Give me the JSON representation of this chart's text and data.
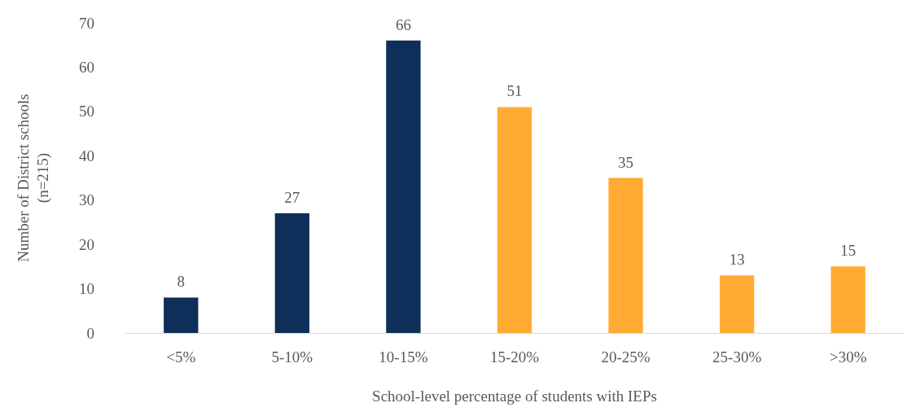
{
  "chart_data": {
    "type": "bar",
    "xlabel": "School-level percentage of students with IEPs",
    "ylabel": "Number of District schools\n(n=215)",
    "categories": [
      "<5%",
      "5-10%",
      "10-15%",
      "15-20%",
      "20-25%",
      "25-30%",
      ">30%"
    ],
    "values": [
      8,
      27,
      66,
      51,
      35,
      13,
      15
    ],
    "colors": [
      "#0d2f5a",
      "#0d2f5a",
      "#0d2f5a",
      "#ffab33",
      "#ffab33",
      "#ffab33",
      "#ffab33"
    ],
    "ylim": [
      0,
      70
    ],
    "yticks": [
      0,
      10,
      20,
      30,
      40,
      50,
      60,
      70
    ],
    "grid": false,
    "data_labels": true
  }
}
